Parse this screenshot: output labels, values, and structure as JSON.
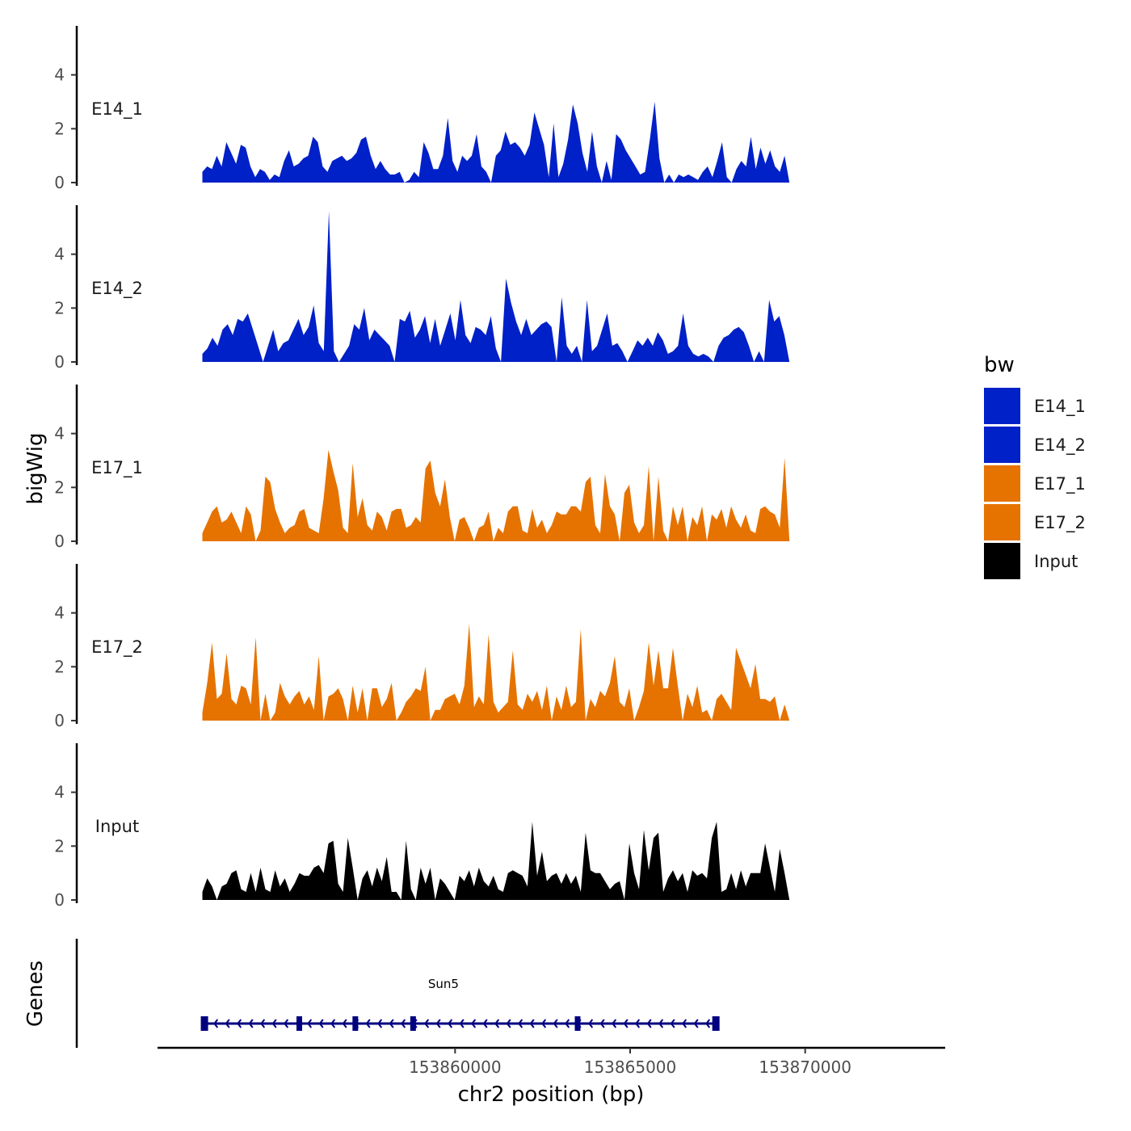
{
  "chart_data": {
    "type": "area",
    "ylabel": "bigWig",
    "xlabel": "chr2 position (bp)",
    "chromosome": "chr2",
    "ylim": [
      0,
      5.7
    ],
    "y_ticks": [
      0,
      2,
      4
    ],
    "xlim": [
      153851500,
      153874000
    ],
    "x_ticks": [
      153860000,
      153865000,
      153870000
    ],
    "x_tick_labels": [
      "153860000",
      "153865000",
      "153870000"
    ],
    "data_start": 153852780,
    "data_end": 153869550,
    "legend": {
      "title": "bw",
      "entries": [
        {
          "name": "E14_1",
          "color": "#0020C8"
        },
        {
          "name": "E14_2",
          "color": "#0020C8"
        },
        {
          "name": "E17_1",
          "color": "#E67300"
        },
        {
          "name": "E17_2",
          "color": "#E67300"
        },
        {
          "name": "Input",
          "color": "#000000"
        }
      ]
    },
    "series": [
      {
        "name": "E14_1",
        "color": "#0020C8",
        "values": [
          0.4,
          0.6,
          0.5,
          1.0,
          0.6,
          1.5,
          1.1,
          0.7,
          1.4,
          1.3,
          0.6,
          0.2,
          0.5,
          0.4,
          0.1,
          0.3,
          0.2,
          0.8,
          1.2,
          0.6,
          0.7,
          0.9,
          1.0,
          1.7,
          1.5,
          0.6,
          0.4,
          0.8,
          0.9,
          1.0,
          0.8,
          0.9,
          1.1,
          1.6,
          1.7,
          1.0,
          0.5,
          0.8,
          0.5,
          0.3,
          0.3,
          0.4,
          0,
          0.1,
          0.4,
          0.2,
          1.5,
          1.1,
          0.5,
          0.5,
          1.0,
          2.4,
          0.8,
          0.4,
          1.0,
          0.8,
          1.0,
          1.8,
          0.6,
          0.4,
          0,
          1.0,
          1.2,
          1.9,
          1.4,
          1.5,
          1.3,
          1.0,
          1.4,
          2.6,
          2.0,
          1.4,
          0.2,
          2.2,
          0.2,
          0.7,
          1.6,
          2.9,
          2.2,
          1.1,
          0.4,
          1.9,
          0.6,
          0,
          0.8,
          0.1,
          1.8,
          1.6,
          1.2,
          0.9,
          0.6,
          0.3,
          0.4,
          1.6,
          3.0,
          0.9,
          0,
          0.3,
          0,
          0.3,
          0.2,
          0.3,
          0.2,
          0.1,
          0.4,
          0.6,
          0.2,
          0.8,
          1.5,
          0.2,
          0,
          0.5,
          0.8,
          0.6,
          1.7,
          0.5,
          1.3,
          0.7,
          1.2,
          0.6,
          0.4,
          1.0,
          0
        ]
      },
      {
        "name": "E14_2",
        "color": "#0020C8",
        "values": [
          0.3,
          0.5,
          0.9,
          0.6,
          1.2,
          1.4,
          1.0,
          1.6,
          1.5,
          1.8,
          1.2,
          0.6,
          0,
          0.6,
          1.2,
          0.4,
          0.7,
          0.8,
          1.2,
          1.6,
          1.0,
          1.3,
          2.1,
          0.7,
          0.4,
          5.6,
          0.4,
          0,
          0.3,
          0.6,
          1.4,
          1.2,
          2.0,
          0.8,
          1.2,
          1.0,
          0.8,
          0.6,
          0,
          1.6,
          1.5,
          1.9,
          0.9,
          1.2,
          1.7,
          0.7,
          1.6,
          0.6,
          1.2,
          1.8,
          0.8,
          2.3,
          1.0,
          0.7,
          1.3,
          1.2,
          1.0,
          1.7,
          0.5,
          0,
          3.1,
          2.2,
          1.5,
          1.0,
          1.6,
          1.0,
          1.2,
          1.4,
          1.5,
          1.3,
          0,
          2.4,
          0.6,
          0.3,
          0.6,
          0,
          2.3,
          0.4,
          0.6,
          1.2,
          1.8,
          0.6,
          0.7,
          0.4,
          0,
          0.4,
          0.8,
          0.6,
          0.9,
          0.6,
          1.1,
          0.8,
          0.3,
          0.4,
          0.6,
          1.8,
          0.6,
          0.3,
          0.2,
          0.3,
          0.2,
          0,
          0.6,
          0.9,
          1.0,
          1.2,
          1.3,
          1.1,
          0.6,
          0,
          0.4,
          0,
          2.3,
          1.5,
          1.7,
          1.0,
          0
        ]
      },
      {
        "name": "E17_1",
        "color": "#E67300"
      },
      {
        "name": "E17_2",
        "color": "#E67300"
      },
      {
        "name": "Input",
        "color": "#000000"
      }
    ]
  },
  "genes": {
    "title": "Genes",
    "gene_name": "Sun5",
    "strand": "-",
    "gene_start": 153852800,
    "gene_end": 153867550,
    "exons": [
      153852840,
      153855550,
      153857150,
      153858800,
      153863500,
      153867450
    ]
  }
}
